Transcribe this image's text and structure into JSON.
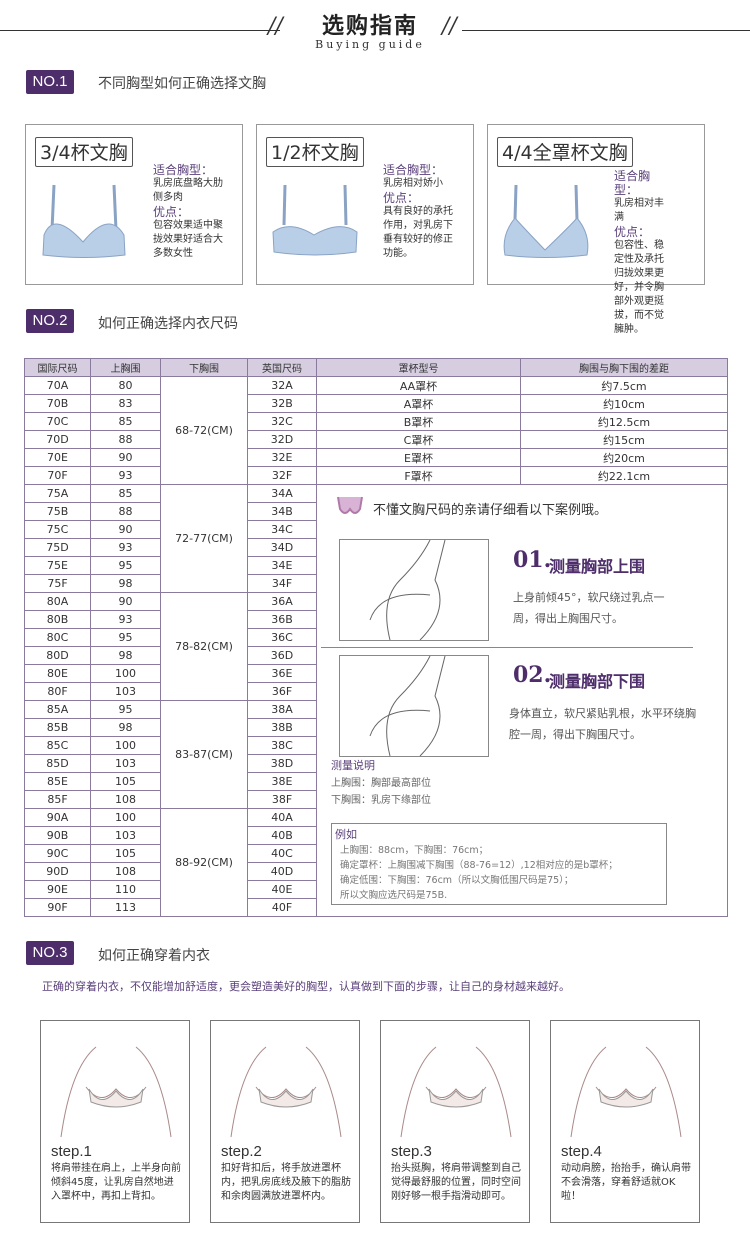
{
  "header": {
    "title_cn": "选购指南",
    "title_en": "Buying guide"
  },
  "colors": {
    "accent": "#4e2d6b",
    "table_header": "#d6cde0",
    "bra": "#b9cfe8"
  },
  "section1": {
    "badge": "NO.1",
    "title": "不同胸型如何正确选择文胸",
    "cards": [
      {
        "title": "3/4杯文胸",
        "fit_label": "适合胸型：",
        "fit": "乳房底盘略大肋侧多肉",
        "adv_label": "优点：",
        "adv": "包容效果适中聚拢效果好适合大多数女性"
      },
      {
        "title": "1/2杯文胸",
        "fit_label": "适合胸型：",
        "fit": "乳房相对娇小",
        "adv_label": "优点：",
        "adv": "具有良好的承托作用，对乳房下垂有较好的修正功能。"
      },
      {
        "title": "4/4全罩杯文胸",
        "fit_label": "适合胸型：",
        "fit": "乳房相对丰满",
        "adv_label": "优点：",
        "adv": "包容性、稳定性及承托归拢效果更好，并令胸部外观更挺拔，而不觉臃肿。"
      }
    ]
  },
  "section2": {
    "badge": "NO.2",
    "title": "如何正确选择内衣尺码",
    "headers": [
      "国际尺码",
      "上胸围",
      "下胸围",
      "英国尺码",
      "罩杯型号",
      "胸围与胸下围的差距"
    ],
    "groups": [
      {
        "under": "68-72(CM)",
        "rows": [
          [
            "70A",
            "80",
            "32A"
          ],
          [
            "70B",
            "83",
            "32B"
          ],
          [
            "70C",
            "85",
            "32C"
          ],
          [
            "70D",
            "88",
            "32D"
          ],
          [
            "70E",
            "90",
            "32E"
          ],
          [
            "70F",
            "93",
            "32F"
          ]
        ]
      },
      {
        "under": "72-77(CM)",
        "rows": [
          [
            "75A",
            "85",
            "34A"
          ],
          [
            "75B",
            "88",
            "34B"
          ],
          [
            "75C",
            "90",
            "34C"
          ],
          [
            "75D",
            "93",
            "34D"
          ],
          [
            "75E",
            "95",
            "34E"
          ],
          [
            "75F",
            "98",
            "34F"
          ]
        ]
      },
      {
        "under": "78-82(CM)",
        "rows": [
          [
            "80A",
            "90",
            "36A"
          ],
          [
            "80B",
            "93",
            "36B"
          ],
          [
            "80C",
            "95",
            "36C"
          ],
          [
            "80D",
            "98",
            "36D"
          ],
          [
            "80E",
            "100",
            "36E"
          ],
          [
            "80F",
            "103",
            "36F"
          ]
        ]
      },
      {
        "under": "83-87(CM)",
        "rows": [
          [
            "85A",
            "95",
            "38A"
          ],
          [
            "85B",
            "98",
            "38B"
          ],
          [
            "85C",
            "100",
            "38C"
          ],
          [
            "85D",
            "103",
            "38D"
          ],
          [
            "85E",
            "105",
            "38E"
          ],
          [
            "85F",
            "108",
            "38F"
          ]
        ]
      },
      {
        "under": "88-92(CM)",
        "rows": [
          [
            "90A",
            "100",
            "40A"
          ],
          [
            "90B",
            "103",
            "40B"
          ],
          [
            "90C",
            "105",
            "40C"
          ],
          [
            "90D",
            "108",
            "40D"
          ],
          [
            "90E",
            "110",
            "40E"
          ],
          [
            "90F",
            "113",
            "40F"
          ]
        ]
      }
    ],
    "cups": [
      [
        "AA罩杯",
        "约7.5cm"
      ],
      [
        "A罩杯",
        "约10cm"
      ],
      [
        "B罩杯",
        "约12.5cm"
      ],
      [
        "C罩杯",
        "约15cm"
      ],
      [
        "E罩杯",
        "约20cm"
      ],
      [
        "F罩杯",
        "约22.1cm"
      ]
    ],
    "panel": {
      "intro": "不懂文胸尺码的亲请仔细看以下案例哦。",
      "m1_num": "01.",
      "m1_title": "测量胸部上围",
      "m1_text": "上身前倾45°，软尺绕过乳点一周，得出上胸围尺寸。",
      "m2_num": "02.",
      "m2_title": "测量胸部下围",
      "m2_text": "身体直立，软尺紧贴乳根，水平环绕胸腔一周，得出下胸围尺寸。",
      "note_title": "测量说明",
      "note1": "上胸围：胸部最高部位",
      "note2": "下胸围：乳房下缘部位",
      "ex_title": "例如",
      "ex_lines": [
        "上胸围：88cm，下胸围：76cm；",
        "确定罩杯：上胸围减下胸围（88-76=12）,12相对应的是b罩杯；",
        "确定低围：下胸围：76cm（所以文胸低围尺码是75）；",
        "所以文胸应选尺码是75B."
      ]
    }
  },
  "section3": {
    "badge": "NO.3",
    "title": "如何正确穿着内衣",
    "intro": "正确的穿着内衣，不仅能增加舒适度，更会塑造美好的胸型，认真做到下面的步骤，让自己的身材越来越好。",
    "steps": [
      {
        "title": "step.1",
        "text": "将肩带挂在肩上，上半身向前倾斜45度，让乳房自然地进入罩杯中，再扣上背扣。"
      },
      {
        "title": "step.2",
        "text": "扣好背扣后，将手放进罩杯内，把乳房底线及腋下的脂肪和余肉圆满放进罩杯内。"
      },
      {
        "title": "step.3",
        "text": "抬头挺胸，将肩带调整到自己觉得最舒服的位置，同时空间刚好够一根手指滑动即可。"
      },
      {
        "title": "step.4",
        "text": "动动肩膀，抬抬手，确认肩带不会滑落，穿着舒适就OK啦！"
      }
    ]
  }
}
